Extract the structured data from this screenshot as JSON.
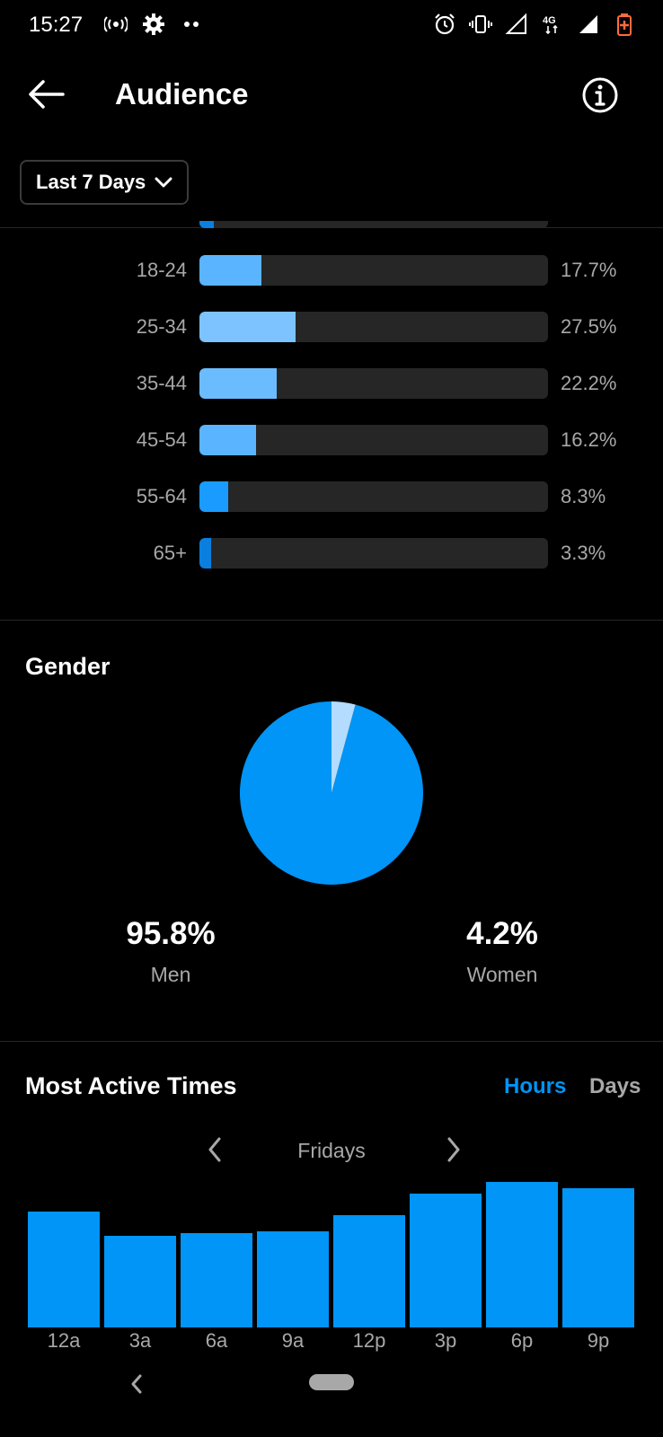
{
  "status_bar": {
    "time": "15:27",
    "left_icons": [
      "wireless-icon",
      "settings-gear-icon",
      "more-dots-icon"
    ],
    "right_icons": [
      "alarm-icon",
      "vibrate-icon",
      "signal-icon",
      "network-4g-icon",
      "signal-full-icon",
      "battery-icon"
    ],
    "network_label": "4G"
  },
  "header": {
    "title": "Audience",
    "back_icon": "arrow-left-icon",
    "info_icon": "info-icon"
  },
  "date_filter": {
    "label": "Last 7 Days",
    "icon": "chevron-down-icon"
  },
  "age_range": {
    "rows": [
      {
        "label": "18-24",
        "value_text": "17.7%",
        "value": 17.7,
        "color": "#5ab4ff"
      },
      {
        "label": "25-34",
        "value_text": "27.5%",
        "value": 27.5,
        "color": "#7cc3ff"
      },
      {
        "label": "35-44",
        "value_text": "22.2%",
        "value": 22.2,
        "color": "#6bbcff"
      },
      {
        "label": "45-54",
        "value_text": "16.2%",
        "value": 16.2,
        "color": "#5ab4ff"
      },
      {
        "label": "55-64",
        "value_text": "8.3%",
        "value": 8.3,
        "color": "#1a9bff"
      },
      {
        "label": "65+",
        "value_text": "3.3%",
        "value": 3.3,
        "color": "#0a7fe0"
      }
    ]
  },
  "gender": {
    "title": "Gender",
    "men": {
      "pct": "95.8%",
      "label": "Men",
      "value": 95.8,
      "color": "#0095f6"
    },
    "women": {
      "pct": "4.2%",
      "label": "Women",
      "value": 4.2,
      "color": "#b3dcff"
    }
  },
  "active_times": {
    "title": "Most Active Times",
    "toggle_hours": "Hours",
    "toggle_days": "Days",
    "day": "Fridays",
    "prev_icon": "chevron-left-icon",
    "next_icon": "chevron-right-icon"
  },
  "chart_data": {
    "type": "bar",
    "categories": [
      "12a",
      "3a",
      "6a",
      "9a",
      "12p",
      "3p",
      "6p",
      "9p"
    ],
    "values": [
      100,
      79,
      81,
      83,
      97,
      115,
      125,
      120
    ],
    "ylim": [
      0,
      130
    ],
    "color": "#0095f6"
  },
  "nav_bar": {
    "back_icon": "nav-back-icon",
    "home_icon": "home-pill-icon"
  },
  "colors": {
    "accent": "#0095f6",
    "background": "#000000",
    "secondary_text": "#a8a8a8",
    "track": "#262626"
  }
}
